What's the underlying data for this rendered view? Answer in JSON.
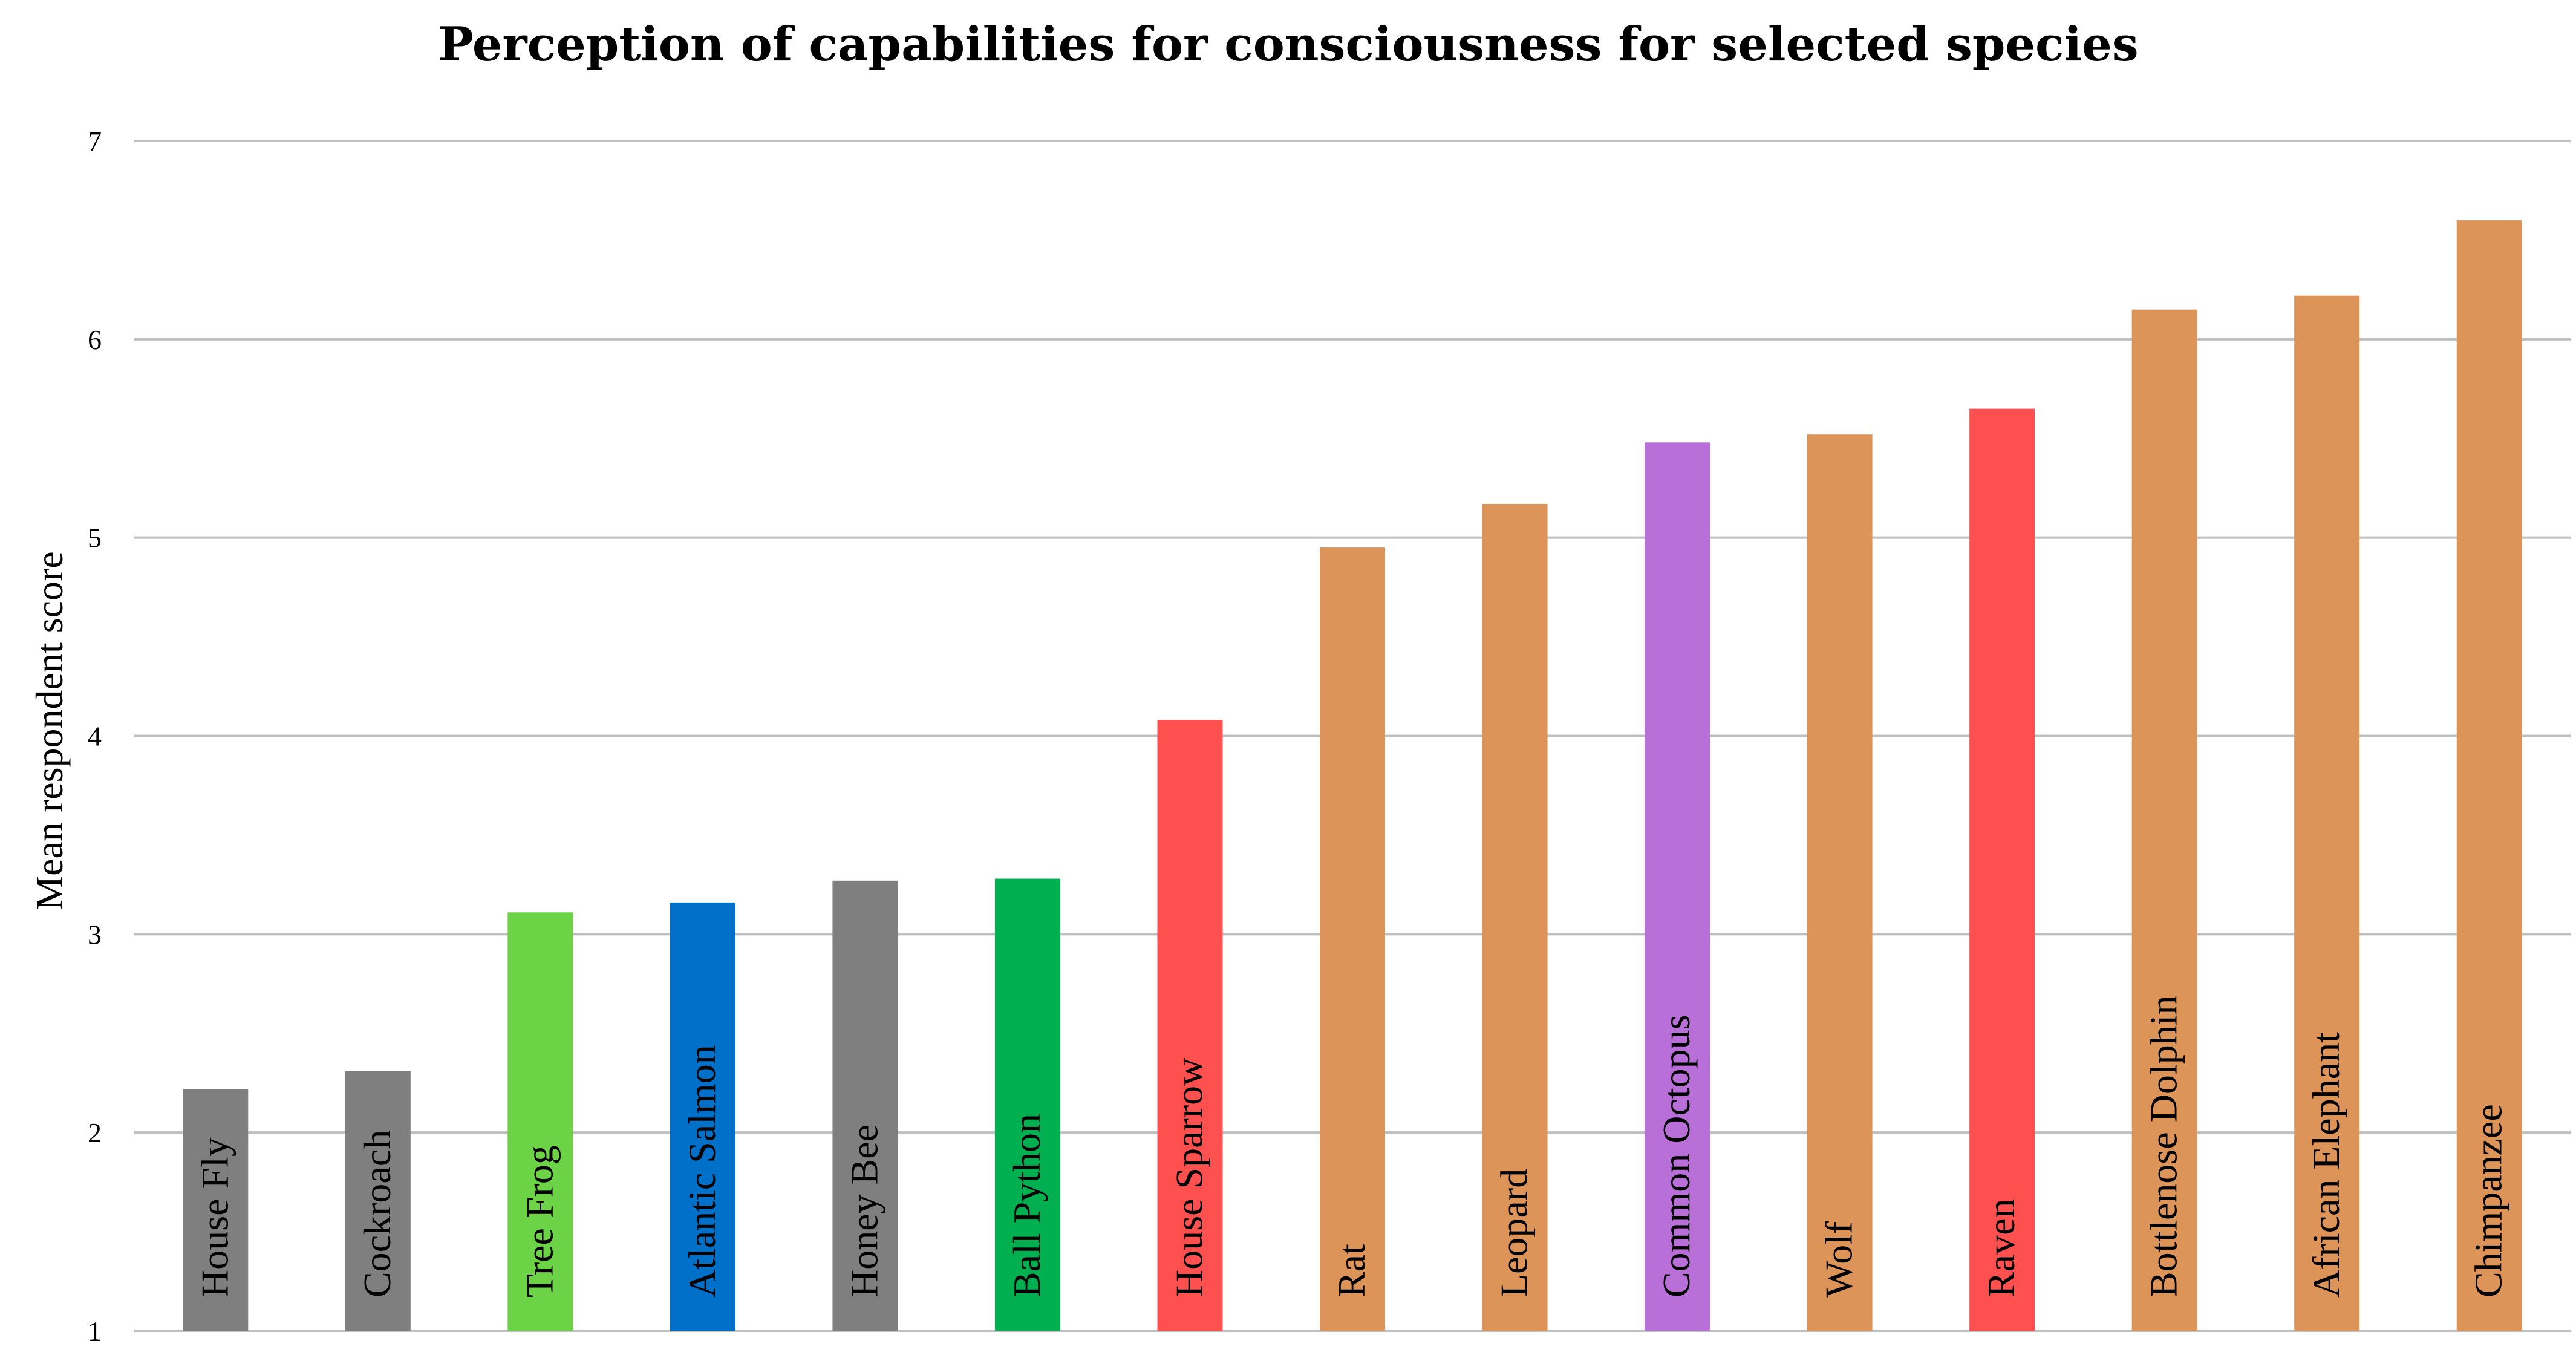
{
  "chart_data": {
    "type": "bar",
    "title": "Perception of capabilities for consciousness for selected species",
    "xlabel": "",
    "ylabel": "Mean respondent score",
    "ylim": [
      1,
      7
    ],
    "yticks": [
      "1",
      "2",
      "3",
      "4",
      "5",
      "6",
      "7"
    ],
    "grid": true,
    "labels_inside_bars": true,
    "categories": [
      "House Fly",
      "Cockroach",
      "Tree Frog",
      "Atlantic Salmon",
      "Honey Bee",
      "Ball Python",
      "House Sparrow",
      "Rat",
      "Leopard",
      "Common Octopus",
      "Wolf",
      "Raven",
      "Bottlenose Dolphin",
      "African Elephant",
      "Chimpanzee"
    ],
    "values": [
      2.22,
      2.31,
      3.11,
      3.16,
      3.27,
      3.28,
      4.08,
      4.95,
      5.17,
      5.48,
      5.52,
      5.65,
      6.15,
      6.22,
      6.6
    ],
    "colors": [
      "#7f7f7f",
      "#7f7f7f",
      "#6cd246",
      "#0070c8",
      "#7f7f7f",
      "#00b050",
      "#ff5050",
      "#dd9459",
      "#dd9459",
      "#b86fd8",
      "#dd9459",
      "#ff5050",
      "#dd9459",
      "#dd9459",
      "#dd9459"
    ]
  }
}
